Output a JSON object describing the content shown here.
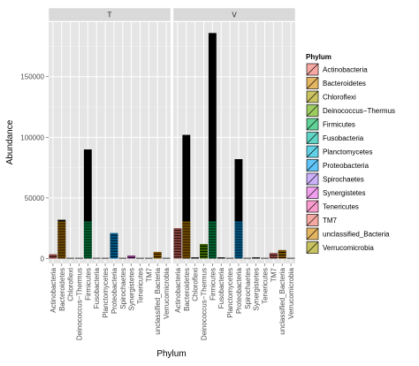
{
  "chart_data": {
    "type": "bar",
    "xlabel": "Phylum",
    "ylabel": "Abundance",
    "ylim": [
      -4000,
      195000
    ],
    "yticks": [
      0,
      50000,
      100000,
      150000
    ],
    "ytick_labels": [
      "0",
      "50000",
      "100000",
      "150000"
    ],
    "grid": true,
    "legend_position": "right",
    "legend_title": "Phylum",
    "categories": [
      "Actinobacteria",
      "Bacteroidetes",
      "Chloroflexi",
      "Deinococcus−Thermus",
      "Firmicutes",
      "Fusobacteria",
      "Planctomycetes",
      "Proteobacteria",
      "Spirochaetes",
      "Synergistetes",
      "Tenericutes",
      "TM7",
      "unclassified_Bacteria",
      "Verrucomicrobia"
    ],
    "colors": [
      "#F8766D",
      "#DB8E00",
      "#AEA200",
      "#64B200",
      "#00BD5C",
      "#00C1A7",
      "#00BADE",
      "#00A6FF",
      "#B385FF",
      "#EF67EB",
      "#FF63B6",
      "#F8766D",
      "#DB8E00",
      "#AEA200"
    ],
    "panels": [
      {
        "label": "T",
        "values": [
          3500,
          32000,
          200,
          300,
          90000,
          100,
          200,
          21000,
          100,
          2500,
          500,
          500,
          5500,
          100
        ]
      },
      {
        "label": "V",
        "values": [
          25000,
          102000,
          1000,
          12000,
          186000,
          1000,
          500,
          82000,
          500,
          1000,
          500,
          4500,
          7000,
          100
        ]
      }
    ]
  }
}
